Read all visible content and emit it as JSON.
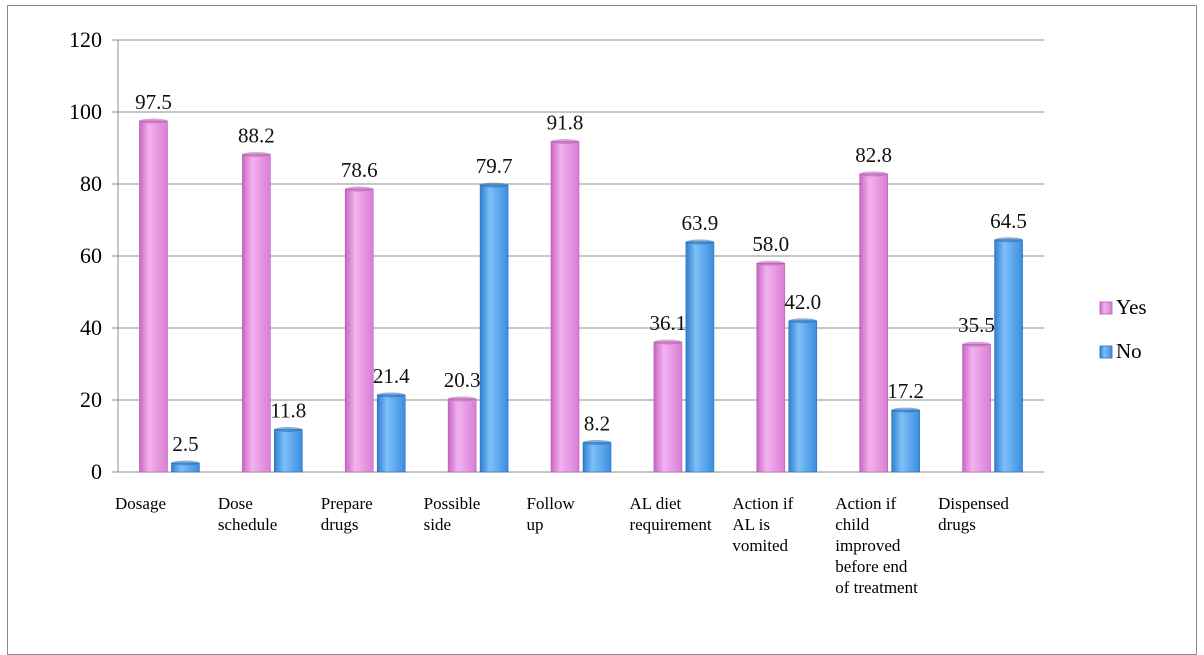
{
  "chart_data": {
    "type": "bar",
    "categories": [
      "Dosage",
      "Dose\nschedule",
      "Prepare\ndrugs",
      "Possible\nside",
      "Follow\nup",
      "AL diet\nrequirement",
      "Action if\nAL is\nvomited",
      "Action if\nchild\nimproved\nbefore end\nof treatment",
      "Dispensed\ndrugs"
    ],
    "series": [
      {
        "name": "Yes",
        "values": [
          97.5,
          88.2,
          78.6,
          20.3,
          91.8,
          36.1,
          58.0,
          82.8,
          35.5
        ],
        "labels": [
          "97.5",
          "88.2",
          "78.6",
          "20.3",
          "91.8",
          "36.1",
          "58.0",
          "82.8",
          "35.5"
        ],
        "color": "#e48fe0"
      },
      {
        "name": "No",
        "values": [
          2.5,
          11.8,
          21.4,
          79.7,
          8.2,
          63.9,
          42.0,
          17.2,
          64.5
        ],
        "labels": [
          "2.5",
          "11.8",
          "21.4",
          "79.7",
          "8.2",
          "63.9",
          "42.0",
          "17.2",
          "64.5"
        ],
        "color": "#4f9fe9"
      }
    ],
    "ylim": [
      0,
      120
    ],
    "yticks": [
      "0",
      "20",
      "40",
      "60",
      "80",
      "100",
      "120"
    ],
    "grid": true,
    "legend_position": "right",
    "title": "",
    "xlabel": "",
    "ylabel": ""
  }
}
